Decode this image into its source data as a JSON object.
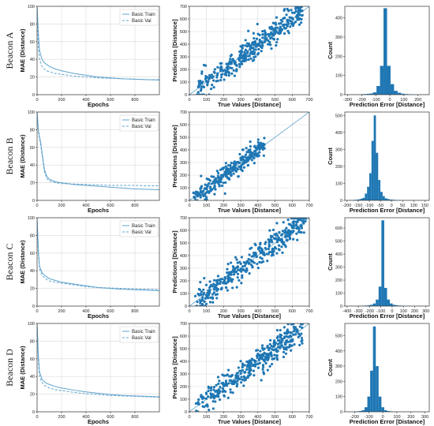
{
  "colors": {
    "series": "#1f77b4",
    "line": "#5fa3cc",
    "grid": "#d9d9d9",
    "axis": "#333333"
  },
  "rows": [
    {
      "label": "Beacon A"
    },
    {
      "label": "Beacon B"
    },
    {
      "label": "Beacon C"
    },
    {
      "label": "Beacon D"
    }
  ],
  "chart_data": [
    {
      "type": "line",
      "row": 0,
      "title": "",
      "xlabel": "Epochs",
      "ylabel": "MAE (Distance)",
      "xlim": [
        0,
        1000
      ],
      "ylim": [
        0,
        100
      ],
      "xticks": [
        0,
        200,
        400,
        600,
        800
      ],
      "yticks": [
        0,
        20,
        40,
        60,
        80,
        100
      ],
      "legend": "top-right",
      "grid": true,
      "series": [
        {
          "name": "Basic Train",
          "style": "solid",
          "x": [
            0,
            10,
            20,
            40,
            60,
            80,
            100,
            150,
            200,
            300,
            400,
            500,
            600,
            700,
            800,
            900,
            1000
          ],
          "y": [
            100,
            70,
            50,
            40,
            36,
            34,
            32,
            29,
            27,
            24,
            22,
            20,
            19,
            18,
            17.5,
            17,
            16.5
          ]
        },
        {
          "name": "Basic Val",
          "style": "dashed",
          "x": [
            0,
            10,
            20,
            40,
            60,
            80,
            100,
            150,
            200,
            300,
            400,
            500,
            600,
            700,
            800,
            900,
            1000
          ],
          "y": [
            100,
            55,
            40,
            32,
            29,
            27,
            26,
            24,
            23,
            21,
            20,
            19,
            18.5,
            18,
            17.5,
            17,
            17
          ]
        }
      ]
    },
    {
      "type": "scatter",
      "row": 0,
      "title": "",
      "xlabel": "True Values [Distance]",
      "ylabel": "Predictions [Distance]",
      "xlim": [
        0,
        700
      ],
      "ylim": [
        0,
        700
      ],
      "xticks": [
        0,
        100,
        200,
        300,
        400,
        500,
        600,
        700
      ],
      "yticks": [
        0,
        100,
        200,
        300,
        400,
        500,
        600,
        700
      ],
      "grid": true,
      "diagonal": true,
      "range": [
        30,
        660
      ],
      "spread": 60,
      "n": 380,
      "seed": 11
    },
    {
      "type": "bar",
      "row": 0,
      "title": "",
      "xlabel": "Prediction Error [Distance]",
      "ylabel": "Count",
      "xlim": [
        -320,
        280
      ],
      "ylim": [
        0,
        460
      ],
      "xticks": [
        -300,
        -200,
        -100,
        0,
        100,
        200
      ],
      "yticks": [
        0,
        100,
        200,
        300,
        400
      ],
      "bin_start": -320,
      "bin_width": 25,
      "values": [
        1,
        1,
        1,
        1,
        2,
        3,
        4,
        6,
        12,
        45,
        150,
        450,
        150,
        55,
        20,
        10,
        5,
        3,
        2,
        1,
        1,
        1,
        1,
        1
      ]
    },
    {
      "type": "line",
      "row": 1,
      "title": "",
      "xlabel": "Epochs",
      "ylabel": "MAE (Distance)",
      "xlim": [
        0,
        1000
      ],
      "ylim": [
        0,
        100
      ],
      "xticks": [
        0,
        200,
        400,
        600,
        800
      ],
      "yticks": [
        0,
        20,
        40,
        60,
        80,
        100
      ],
      "legend": "top-right",
      "grid": true,
      "series": [
        {
          "name": "Basic Train",
          "style": "solid",
          "x": [
            0,
            10,
            20,
            30,
            40,
            50,
            60,
            80,
            100,
            150,
            200,
            300,
            400,
            500,
            600,
            700,
            800,
            900,
            1000
          ],
          "y": [
            100,
            80,
            72,
            65,
            55,
            45,
            35,
            27,
            24,
            21,
            20,
            18,
            17,
            16,
            15,
            14,
            13,
            12.5,
            12
          ]
        },
        {
          "name": "Basic Val",
          "style": "dashed",
          "x": [
            0,
            10,
            20,
            30,
            40,
            50,
            60,
            80,
            100,
            150,
            200,
            300,
            400,
            500,
            600,
            700,
            800,
            900,
            1000
          ],
          "y": [
            100,
            78,
            70,
            62,
            52,
            42,
            32,
            25,
            22,
            20,
            19,
            18.5,
            18,
            17.5,
            17,
            17,
            17,
            16.5,
            16.5
          ]
        }
      ]
    },
    {
      "type": "scatter",
      "row": 1,
      "title": "",
      "xlabel": "True Values [Distance]",
      "ylabel": "Predictions [Distance]",
      "xlim": [
        0,
        700
      ],
      "ylim": [
        0,
        700
      ],
      "xticks": [
        0,
        100,
        200,
        300,
        400,
        500,
        600,
        700
      ],
      "yticks": [
        0,
        100,
        200,
        300,
        400,
        500,
        600,
        700
      ],
      "grid": true,
      "diagonal": true,
      "range": [
        20,
        440
      ],
      "spread": 45,
      "n": 300,
      "seed": 23
    },
    {
      "type": "bar",
      "row": 1,
      "title": "",
      "xlabel": "Prediction Error [Distance]",
      "ylabel": "Count",
      "xlim": [
        -210,
        170
      ],
      "ylim": [
        0,
        520
      ],
      "xticks": [
        -200,
        -150,
        -100,
        -50,
        0,
        50,
        100,
        150
      ],
      "yticks": [
        0,
        100,
        200,
        300,
        400,
        500
      ],
      "bin_start": -210,
      "bin_width": 10,
      "values": [
        1,
        1,
        2,
        2,
        3,
        4,
        6,
        10,
        15,
        40,
        80,
        160,
        350,
        500,
        280,
        120,
        50,
        25,
        12,
        8,
        5,
        4,
        3,
        2,
        2,
        1,
        1,
        1,
        1,
        1,
        1,
        1,
        1,
        1,
        1,
        1,
        1,
        1
      ]
    },
    {
      "type": "line",
      "row": 2,
      "title": "",
      "xlabel": "Epochs",
      "ylabel": "MAE (Distance)",
      "xlim": [
        0,
        1000
      ],
      "ylim": [
        0,
        100
      ],
      "xticks": [
        0,
        200,
        400,
        600,
        800
      ],
      "yticks": [
        0,
        20,
        40,
        60,
        80,
        100
      ],
      "legend": "top-right",
      "grid": true,
      "series": [
        {
          "name": "Basic Train",
          "style": "solid",
          "x": [
            0,
            10,
            20,
            40,
            60,
            80,
            100,
            150,
            200,
            300,
            400,
            500,
            600,
            700,
            800,
            900,
            1000
          ],
          "y": [
            100,
            65,
            45,
            38,
            35,
            33,
            31,
            29,
            27,
            25,
            23,
            21,
            20,
            19,
            18.5,
            18,
            17.5
          ]
        },
        {
          "name": "Basic Val",
          "style": "dashed",
          "x": [
            0,
            10,
            20,
            40,
            60,
            80,
            100,
            150,
            200,
            300,
            400,
            500,
            600,
            700,
            800,
            900,
            1000
          ],
          "y": [
            100,
            60,
            42,
            35,
            32,
            30,
            28.5,
            27,
            26,
            24,
            22,
            21,
            20.5,
            20,
            19.5,
            19,
            18.5
          ]
        }
      ]
    },
    {
      "type": "scatter",
      "row": 2,
      "title": "",
      "xlabel": "True Values [Distance]",
      "ylabel": "Predictions [Distance]",
      "xlim": [
        0,
        700
      ],
      "ylim": [
        0,
        700
      ],
      "xticks": [
        0,
        100,
        200,
        300,
        400,
        500,
        600,
        700
      ],
      "yticks": [
        0,
        100,
        200,
        300,
        400,
        500,
        600,
        700
      ],
      "grid": true,
      "diagonal": true,
      "range": [
        30,
        680
      ],
      "spread": 65,
      "n": 380,
      "seed": 37
    },
    {
      "type": "bar",
      "row": 2,
      "title": "",
      "xlabel": "Prediction Error [Distance]",
      "ylabel": "Count",
      "xlim": [
        -420,
        330
      ],
      "ylim": [
        0,
        680
      ],
      "xticks": [
        -400,
        -300,
        -200,
        -100,
        0,
        100,
        200,
        300
      ],
      "yticks": [
        0,
        100,
        200,
        300,
        400,
        500,
        600
      ],
      "bin_start": -420,
      "bin_width": 25,
      "values": [
        1,
        1,
        1,
        1,
        2,
        2,
        3,
        4,
        6,
        10,
        20,
        50,
        150,
        660,
        140,
        50,
        20,
        10,
        6,
        4,
        3,
        2,
        2,
        1,
        1,
        1,
        1,
        1,
        1,
        1
      ]
    },
    {
      "type": "line",
      "row": 3,
      "title": "",
      "xlabel": "Epochs",
      "ylabel": "MAE (Distance)",
      "xlim": [
        0,
        1000
      ],
      "ylim": [
        0,
        100
      ],
      "xticks": [
        0,
        200,
        400,
        600,
        800
      ],
      "yticks": [
        0,
        20,
        40,
        60,
        80,
        100
      ],
      "legend": "top-right",
      "grid": true,
      "series": [
        {
          "name": "Basic Train",
          "style": "solid",
          "x": [
            0,
            10,
            20,
            40,
            60,
            80,
            100,
            150,
            200,
            300,
            400,
            500,
            600,
            700,
            800,
            900,
            1000
          ],
          "y": [
            100,
            65,
            45,
            37,
            34,
            32,
            31,
            28.5,
            27,
            24.5,
            22.5,
            21,
            19.5,
            18.5,
            18,
            17.5,
            17
          ]
        },
        {
          "name": "Basic Val",
          "style": "dashed",
          "x": [
            0,
            10,
            20,
            40,
            60,
            80,
            100,
            150,
            200,
            300,
            400,
            500,
            600,
            700,
            800,
            900,
            1000
          ],
          "y": [
            100,
            58,
            40,
            33,
            30,
            28,
            27,
            25,
            24,
            22,
            20.5,
            19.5,
            18.5,
            18,
            17.5,
            17,
            16.5
          ]
        }
      ]
    },
    {
      "type": "scatter",
      "row": 3,
      "title": "",
      "xlabel": "True Values [Distance]",
      "ylabel": "Predictions [Distance]",
      "xlim": [
        0,
        700
      ],
      "ylim": [
        0,
        700
      ],
      "xticks": [
        0,
        100,
        200,
        300,
        400,
        500,
        600,
        700
      ],
      "yticks": [
        0,
        100,
        200,
        300,
        400,
        500,
        600,
        700
      ],
      "grid": true,
      "diagonal": true,
      "range": [
        30,
        660
      ],
      "spread": 70,
      "n": 380,
      "seed": 53
    },
    {
      "type": "bar",
      "row": 3,
      "title": "",
      "xlabel": "Prediction Error [Distance]",
      "ylabel": "Count",
      "xlim": [
        -270,
        330
      ],
      "ylim": [
        0,
        580
      ],
      "xticks": [
        -200,
        -100,
        0,
        100,
        200,
        300
      ],
      "yticks": [
        0,
        100,
        200,
        300,
        400,
        500
      ],
      "bin_start": -270,
      "bin_width": 20,
      "values": [
        1,
        1,
        1,
        2,
        3,
        5,
        10,
        30,
        100,
        270,
        560,
        300,
        100,
        30,
        10,
        5,
        3,
        2,
        1,
        1,
        1,
        1,
        1,
        1,
        1,
        1,
        1,
        1,
        1,
        1
      ]
    }
  ]
}
